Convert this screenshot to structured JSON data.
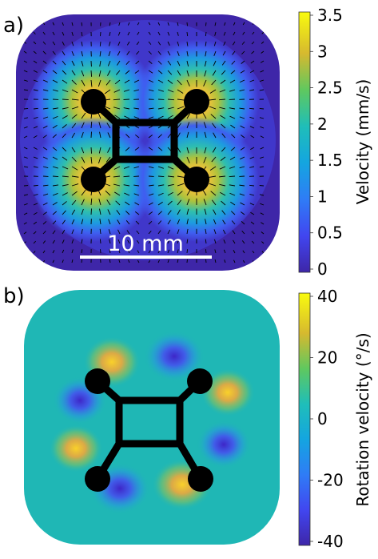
{
  "panel_a": {
    "label": "a)",
    "scale_bar_label": "10 mm",
    "colorbar": {
      "title": "Velocity (mm/s)",
      "ticks": [
        "3.5",
        "3",
        "2.5",
        "2",
        "1.5",
        "1",
        "0.5",
        "0"
      ],
      "range": [
        0,
        3.5
      ],
      "colormap": "parula"
    }
  },
  "panel_b": {
    "label": "b)",
    "colorbar": {
      "title": "Rotation velocity (°/s)",
      "ticks": [
        "40",
        "20",
        "0",
        "-20",
        "-40"
      ],
      "range": [
        -40,
        40
      ],
      "colormap": "parula"
    }
  },
  "colors": {
    "background_low": "#3e26a8",
    "background_mid": "#1fb7b5",
    "high": "#f9fb0e",
    "device": "#000000"
  }
}
